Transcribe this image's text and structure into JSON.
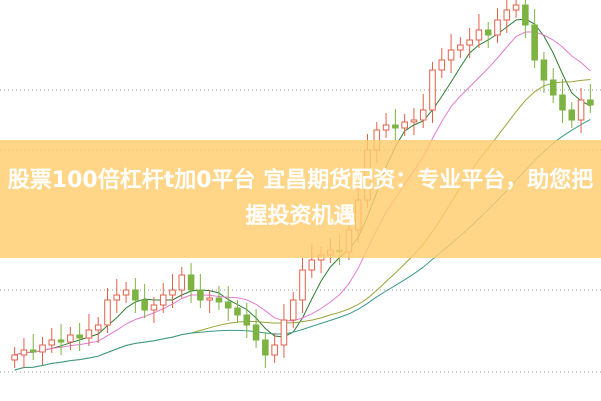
{
  "headline": "股票100倍杠杆t加0平台 宜昌期货配资：专业平台，助您把握投资机遇",
  "chart_data": {
    "type": "candlestick",
    "title": "",
    "grid": "dotted horizontal",
    "colors": {
      "up": "#e0604a",
      "down": "#7cb342",
      "ma5": "#2e7d32",
      "ma10": "#e57bd0",
      "ma20": "#9aa53a",
      "ma30": "#3a9a8a"
    },
    "moving_averages": [
      5,
      10,
      20,
      30
    ],
    "closes": [
      4.5,
      5.0,
      4.8,
      5.5,
      6.0,
      5.8,
      6.5,
      6.2,
      7.0,
      7.5,
      10.0,
      10.5,
      11.0,
      10.0,
      9.0,
      9.5,
      10.5,
      11.0,
      12.5,
      11.0,
      10.0,
      10.2,
      9.8,
      9.2,
      8.5,
      7.5,
      6.0,
      4.5,
      5.5,
      8.0,
      10.0,
      13.0,
      14.0,
      14.5,
      15.0,
      14.8,
      17.0,
      20.0,
      25.0,
      27.0,
      27.5,
      27.2,
      27.8,
      28.0,
      29.0,
      33.0,
      34.0,
      35.0,
      35.5,
      36.0,
      37.0,
      36.5,
      38.0,
      39.0,
      39.5,
      37.5,
      34.0,
      32.0,
      30.5,
      29.0,
      28.0,
      30.0,
      29.5
    ]
  }
}
